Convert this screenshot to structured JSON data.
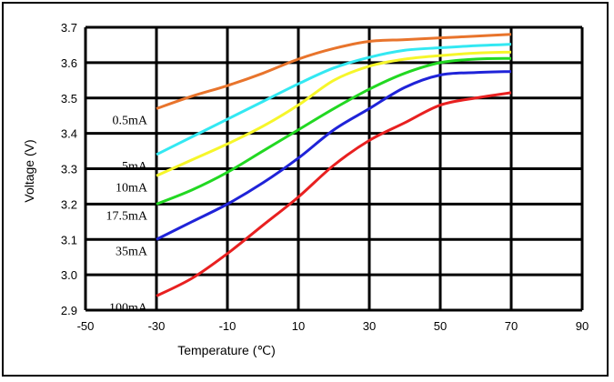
{
  "chart_data": {
    "type": "line",
    "title": "",
    "xlabel": "Temperature (℃)",
    "ylabel": "Voltage (V)",
    "xlim": [
      -50,
      90
    ],
    "ylim": [
      2.9,
      3.7
    ],
    "x_ticks": [
      -50,
      -30,
      -10,
      10,
      30,
      50,
      70,
      90
    ],
    "y_ticks": [
      2.9,
      3.0,
      3.1,
      3.2,
      3.3,
      3.4,
      3.5,
      3.6,
      3.7
    ],
    "x_tick_labels": [
      "-50",
      "-30",
      "-10",
      "10",
      "30",
      "50",
      "70",
      "90"
    ],
    "y_tick_labels": [
      "2.9",
      "3.0",
      "3.1",
      "3.2",
      "3.3",
      "3.4",
      "3.5",
      "3.6",
      "3.7"
    ],
    "grid": true,
    "x": [
      -30,
      -20,
      -10,
      0,
      10,
      20,
      30,
      40,
      50,
      60,
      70
    ],
    "series": [
      {
        "name": "0.5mA",
        "color": "#e8742c",
        "values": [
          3.47,
          3.505,
          3.535,
          3.57,
          3.61,
          3.64,
          3.66,
          3.665,
          3.67,
          3.675,
          3.68
        ]
      },
      {
        "name": "5mA",
        "color": "#33e8f2",
        "values": [
          3.34,
          3.39,
          3.44,
          3.49,
          3.54,
          3.585,
          3.615,
          3.635,
          3.642,
          3.648,
          3.652
        ]
      },
      {
        "name": "10mA",
        "color": "#f6f62a",
        "values": [
          3.28,
          3.325,
          3.37,
          3.42,
          3.48,
          3.55,
          3.59,
          3.61,
          3.62,
          3.627,
          3.63
        ]
      },
      {
        "name": "17.5mA",
        "color": "#22d822",
        "values": [
          3.2,
          3.24,
          3.29,
          3.35,
          3.41,
          3.47,
          3.525,
          3.57,
          3.6,
          3.61,
          3.612
        ]
      },
      {
        "name": "35mA",
        "color": "#1f23d8",
        "values": [
          3.1,
          3.15,
          3.2,
          3.26,
          3.33,
          3.41,
          3.47,
          3.53,
          3.565,
          3.572,
          3.575
        ]
      },
      {
        "name": "100mA",
        "color": "#e82020",
        "values": [
          2.94,
          2.99,
          3.06,
          3.14,
          3.22,
          3.31,
          3.38,
          3.43,
          3.48,
          3.5,
          3.515
        ]
      }
    ]
  }
}
